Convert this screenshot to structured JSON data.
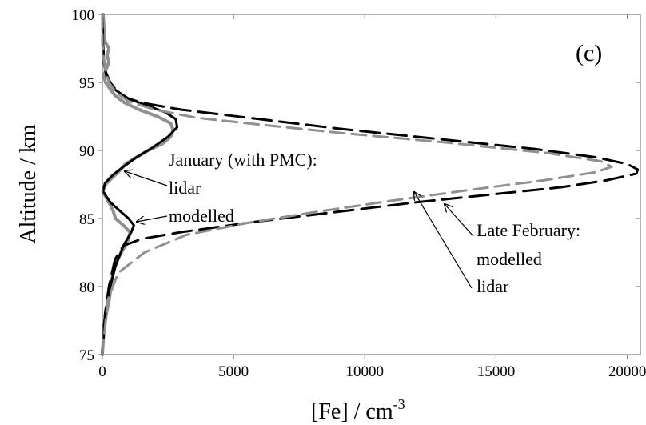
{
  "chart_data": {
    "type": "line",
    "panel_label": "(c)",
    "xlabel_base": "[Fe] / cm",
    "xlabel_exponent": "-3",
    "ylabel": "Altitude / km",
    "xlim": [
      0,
      20500
    ],
    "ylim": [
      75,
      100
    ],
    "grid": false,
    "x_ticks": [
      0,
      5000,
      10000,
      15000,
      20000
    ],
    "x_tick_labels": [
      "0",
      "5000",
      "10000",
      "15000",
      "20000"
    ],
    "y_ticks": [
      75,
      80,
      85,
      90,
      95,
      100
    ],
    "y_tick_labels": [
      "75",
      "80",
      "85",
      "90",
      "95",
      "100"
    ],
    "annotations": [
      {
        "text": "January (with PMC):",
        "group": "january"
      },
      {
        "text": "lidar",
        "group": "january"
      },
      {
        "text": "modelled",
        "group": "january"
      },
      {
        "text": "Late February:",
        "group": "february"
      },
      {
        "text": "modelled",
        "group": "february"
      },
      {
        "text": "lidar",
        "group": "february"
      }
    ],
    "series": [
      {
        "key": "january-lidar",
        "style": "solid",
        "color": "#909090",
        "width": 4,
        "points": [
          [
            0,
            75
          ],
          [
            30,
            76
          ],
          [
            80,
            77
          ],
          [
            150,
            78
          ],
          [
            260,
            79
          ],
          [
            330,
            80
          ],
          [
            400,
            81
          ],
          [
            580,
            82
          ],
          [
            870,
            83
          ],
          [
            1000,
            83.5
          ],
          [
            1050,
            84
          ],
          [
            800,
            84.5
          ],
          [
            500,
            85
          ],
          [
            420,
            85.5
          ],
          [
            300,
            86
          ],
          [
            150,
            86.5
          ],
          [
            20,
            87
          ],
          [
            120,
            87.5
          ],
          [
            380,
            88
          ],
          [
            650,
            88.5
          ],
          [
            880,
            89
          ],
          [
            1300,
            89.5
          ],
          [
            1750,
            90
          ],
          [
            2300,
            90.5
          ],
          [
            2600,
            91
          ],
          [
            2700,
            91.5
          ],
          [
            2600,
            92
          ],
          [
            2100,
            92.5
          ],
          [
            1400,
            93
          ],
          [
            850,
            93.5
          ],
          [
            500,
            94
          ],
          [
            300,
            94.5
          ],
          [
            120,
            95
          ],
          [
            50,
            95.5
          ],
          [
            150,
            96
          ],
          [
            250,
            96.5
          ],
          [
            180,
            97
          ],
          [
            250,
            97.5
          ],
          [
            100,
            98
          ],
          [
            60,
            99
          ],
          [
            30,
            100
          ]
        ]
      },
      {
        "key": "january-modelled",
        "style": "solid",
        "color": "#000000",
        "width": 3,
        "points": [
          [
            0,
            75
          ],
          [
            50,
            77
          ],
          [
            150,
            78.5
          ],
          [
            300,
            80
          ],
          [
            500,
            81.5
          ],
          [
            800,
            83
          ],
          [
            1100,
            84
          ],
          [
            1200,
            84.5
          ],
          [
            1000,
            85
          ],
          [
            700,
            85.5
          ],
          [
            300,
            86.2
          ],
          [
            20,
            87
          ],
          [
            100,
            87.6
          ],
          [
            400,
            88.2
          ],
          [
            800,
            88.8
          ],
          [
            1300,
            89.5
          ],
          [
            1900,
            90.2
          ],
          [
            2500,
            91
          ],
          [
            2850,
            91.7
          ],
          [
            2800,
            92.3
          ],
          [
            2400,
            92.8
          ],
          [
            1700,
            93.3
          ],
          [
            1000,
            93.8
          ],
          [
            450,
            94.5
          ],
          [
            150,
            95.5
          ],
          [
            50,
            96.5
          ],
          [
            20,
            98
          ],
          [
            0,
            100
          ]
        ]
      },
      {
        "key": "february-modelled",
        "style": "dashed",
        "color": "#000000",
        "width": 3,
        "points": [
          [
            0,
            75
          ],
          [
            100,
            78
          ],
          [
            250,
            80
          ],
          [
            480,
            82
          ],
          [
            800,
            83
          ],
          [
            1500,
            83.5
          ],
          [
            3000,
            84
          ],
          [
            6000,
            84.8
          ],
          [
            9000,
            85.5
          ],
          [
            12000,
            86.2
          ],
          [
            15000,
            86.8
          ],
          [
            17500,
            87.3
          ],
          [
            19200,
            87.8
          ],
          [
            20350,
            88.3
          ],
          [
            20400,
            88.6
          ],
          [
            20000,
            89
          ],
          [
            18800,
            89.5
          ],
          [
            16500,
            90.1
          ],
          [
            13000,
            90.8
          ],
          [
            9000,
            91.6
          ],
          [
            6000,
            92.3
          ],
          [
            3000,
            93
          ],
          [
            1500,
            93.5
          ],
          [
            700,
            94
          ],
          [
            300,
            95
          ],
          [
            80,
            96
          ],
          [
            20,
            98
          ],
          [
            0,
            100
          ]
        ]
      },
      {
        "key": "february-lidar",
        "style": "dashed",
        "color": "#909090",
        "width": 3,
        "points": [
          [
            0,
            75
          ],
          [
            200,
            79
          ],
          [
            600,
            81
          ],
          [
            1600,
            82.5
          ],
          [
            3200,
            83.8
          ],
          [
            5600,
            84.7
          ],
          [
            8200,
            85.5
          ],
          [
            11000,
            86.3
          ],
          [
            14000,
            87.1
          ],
          [
            16800,
            87.8
          ],
          [
            18800,
            88.4
          ],
          [
            19400,
            88.8
          ],
          [
            19000,
            89.2
          ],
          [
            17000,
            89.8
          ],
          [
            13000,
            90.6
          ],
          [
            9000,
            91.3
          ],
          [
            6000,
            91.9
          ],
          [
            3600,
            92.4
          ],
          [
            2000,
            93
          ],
          [
            1000,
            93.6
          ],
          [
            500,
            94.3
          ],
          [
            250,
            95
          ],
          [
            100,
            96
          ],
          [
            0,
            97.8
          ],
          [
            0,
            100
          ]
        ]
      }
    ]
  }
}
